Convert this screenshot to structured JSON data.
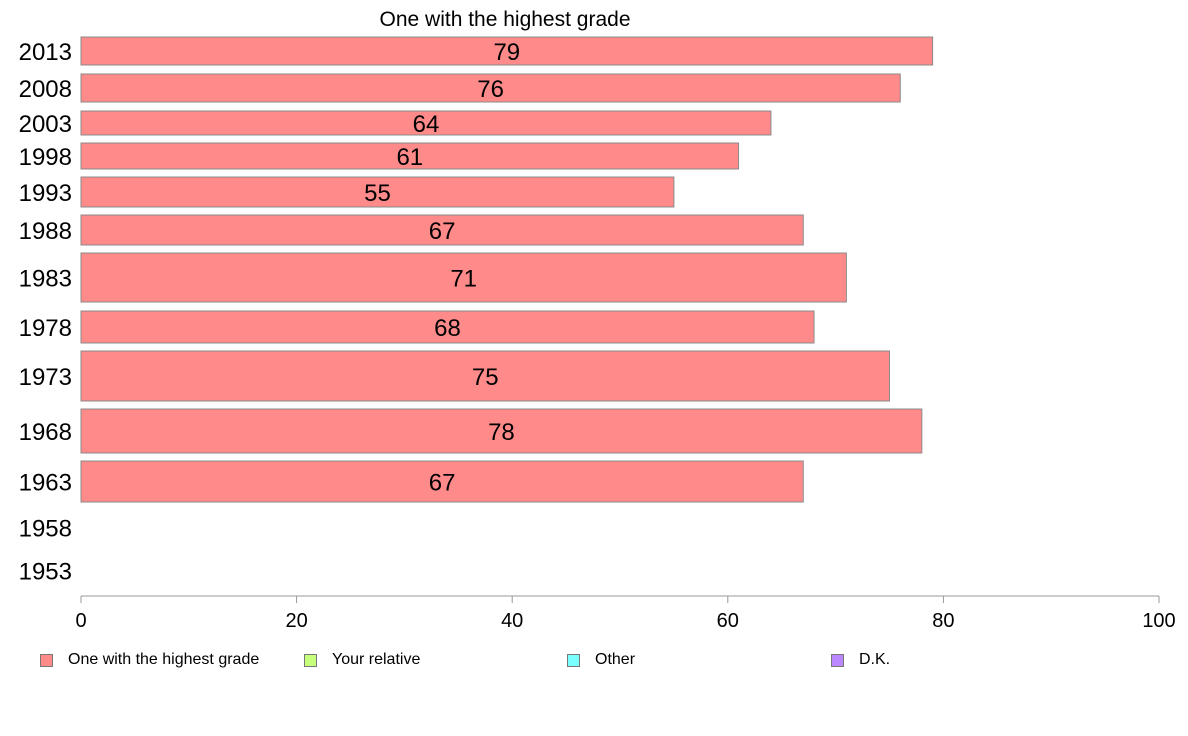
{
  "chart_data": {
    "type": "bar",
    "orientation": "horizontal",
    "title": "One with the highest grade",
    "categories": [
      "2013",
      "2008",
      "2003",
      "1998",
      "1993",
      "1988",
      "1983",
      "1978",
      "1973",
      "1968",
      "1963",
      "1958",
      "1953"
    ],
    "series": [
      {
        "name": "One with the highest grade",
        "values": [
          79,
          76,
          64,
          61,
          55,
          67,
          71,
          68,
          75,
          78,
          67,
          null,
          null
        ],
        "data_labels": [
          "79",
          "76",
          "64",
          "61",
          "55",
          "67",
          "71",
          "68",
          "75",
          "78",
          "67",
          "",
          ""
        ]
      },
      {
        "name": "Your relative",
        "values": [
          null,
          null,
          null,
          null,
          null,
          null,
          null,
          null,
          null,
          null,
          null,
          null,
          null
        ]
      },
      {
        "name": "Other",
        "values": [
          null,
          null,
          null,
          null,
          null,
          null,
          null,
          null,
          null,
          null,
          null,
          null,
          null
        ]
      },
      {
        "name": "D.K.",
        "values": [
          null,
          null,
          null,
          null,
          null,
          null,
          null,
          null,
          null,
          null,
          null,
          null,
          null
        ]
      }
    ],
    "xlim": [
      0,
      100
    ],
    "xticks": [
      "0",
      "20",
      "40",
      "60",
      "80",
      "100"
    ],
    "xlabel": "",
    "ylabel": "",
    "grid": false,
    "legend_placement": "bottom"
  },
  "colors": {
    "bar": "#ff8a8a",
    "bar_edge": "#8a8a8a",
    "axis": "#999999",
    "legend": [
      "#ff8a8a",
      "#c6ff7a",
      "#7affff",
      "#bb88ff"
    ]
  }
}
